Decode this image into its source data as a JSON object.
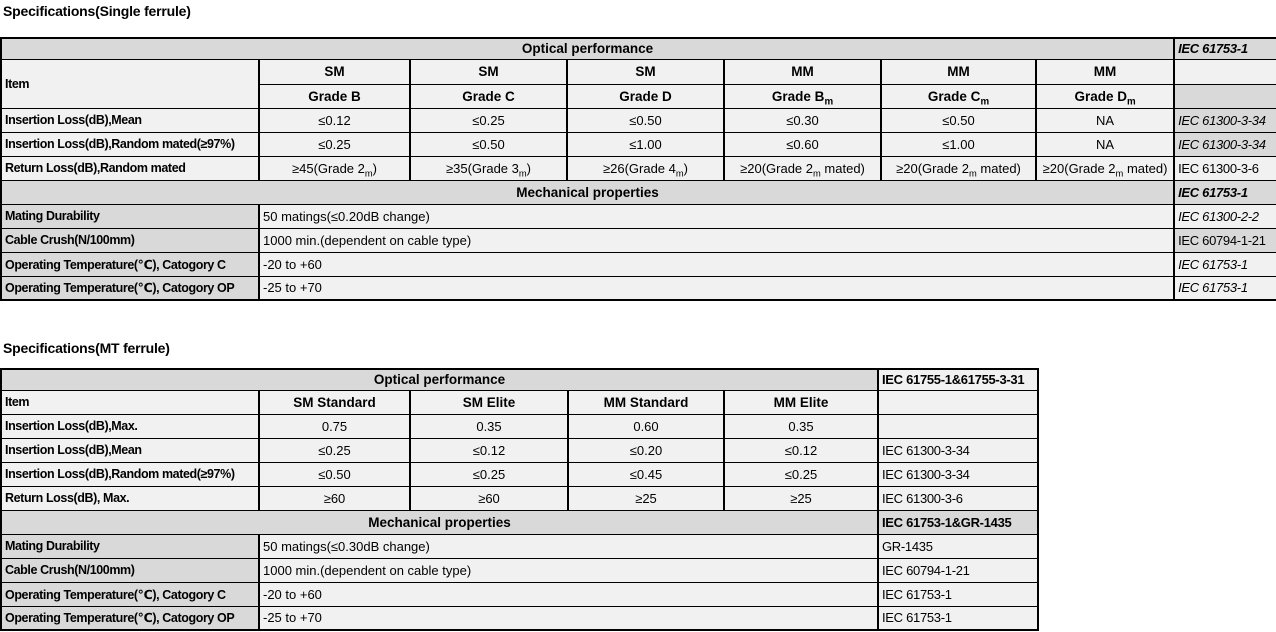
{
  "colors": {
    "page_bg": "#ffffff",
    "header_bg": "#d9d9d9",
    "cell_bg": "#f1f1f1",
    "border": "#000000",
    "text": "#000000"
  },
  "sections": [
    {
      "title": "Specifications(Single ferrule)",
      "optical": {
        "header": "Optical performance",
        "ref": {
          "text": "IEC 61753-1",
          "bold": true,
          "italic": true,
          "gray": true
        },
        "item_label": "Item",
        "col_groups": [
          "SM",
          "SM",
          "SM",
          "MM",
          "MM",
          "MM"
        ],
        "grades": [
          "Grade B",
          "Grade C",
          "Grade D",
          "Grade B{m}",
          "Grade C{m}",
          "Grade D{m}"
        ],
        "rows": [
          {
            "label": "Insertion Loss(dB),Mean",
            "values": [
              "≤0.12",
              "≤0.25",
              "≤0.50",
              "≤0.30",
              "≤0.50",
              "NA"
            ],
            "ref": {
              "text": "IEC 61300-3-34",
              "italic": true,
              "gray": true
            }
          },
          {
            "label": "Insertion Loss(dB),Random mated(≥97%)",
            "values": [
              "≤0.25",
              "≤0.50",
              "≤1.00",
              "≤0.60",
              "≤1.00",
              "NA"
            ],
            "ref": {
              "text": "IEC 61300-3-34",
              "italic": true,
              "gray": true
            }
          },
          {
            "label": "Return Loss(dB),Random mated",
            "values": [
              "≥45(Grade 2{m})",
              "≥35(Grade 3{m})",
              "≥26(Grade 4{m})",
              "≥20(Grade 2{m} mated)",
              "≥20(Grade 2{m} mated)",
              "≥20(Grade 2{m} mated)"
            ],
            "ref": {
              "text": "IEC 61300-3-6"
            }
          }
        ]
      },
      "mechanical": {
        "header": "Mechanical properties",
        "ref": {
          "text": "IEC 61753-1",
          "bold": true,
          "italic": true,
          "gray": true
        },
        "rows": [
          {
            "label": "Mating Durability",
            "value": "50 matings(≤0.20dB change)",
            "ref": {
              "text": "IEC 61300-2-2",
              "italic": true
            }
          },
          {
            "label": "Cable Crush(N/100mm)",
            "value": "1000 min.(dependent on cable type)",
            "ref": {
              "text": "IEC 60794-1-21",
              "gray": true
            }
          },
          {
            "label": "Operating Temperature(℃), Catogory C",
            "value": "-20 to +60",
            "ref": {
              "text": "IEC 61753-1",
              "italic": true
            }
          },
          {
            "label": "Operating Temperature(℃), Catogory OP",
            "value": "-25 to +70",
            "ref": {
              "text": "IEC 61753-1",
              "italic": true
            }
          }
        ]
      }
    },
    {
      "title": "Specifications(MT ferrule)",
      "optical": {
        "header": "Optical performance",
        "ref": {
          "text": "IEC 61755-1&61755-3-31",
          "bold": true
        },
        "item_label": "Item",
        "col_headers": [
          "SM Standard",
          "SM Elite",
          "MM Standard",
          "MM Elite"
        ],
        "rows": [
          {
            "label": "Insertion Loss(dB),Max.",
            "values": [
              "0.75",
              "0.35",
              "0.60",
              "0.35"
            ],
            "ref": {
              "text": ""
            }
          },
          {
            "label": "Insertion Loss(dB),Mean",
            "values": [
              "≤0.25",
              "≤0.12",
              "≤0.20",
              "≤0.12"
            ],
            "ref": {
              "text": "IEC 61300-3-34"
            }
          },
          {
            "label": "Insertion Loss(dB),Random mated(≥97%)",
            "values": [
              "≤0.50",
              "≤0.25",
              "≤0.45",
              "≤0.25"
            ],
            "ref": {
              "text": "IEC 61300-3-34"
            }
          },
          {
            "label": "Return Loss(dB), Max.",
            "values": [
              "≥60",
              "≥60",
              "≥25",
              "≥25"
            ],
            "ref": {
              "text": "IEC 61300-3-6"
            }
          }
        ]
      },
      "mechanical": {
        "header": "Mechanical properties",
        "ref": {
          "text": "IEC 61753-1&GR-1435",
          "bold": true,
          "gray": true
        },
        "rows": [
          {
            "label": "Mating Durability",
            "value": "50 matings(≤0.30dB change)",
            "ref": {
              "text": "GR-1435"
            }
          },
          {
            "label": "Cable Crush(N/100mm)",
            "value": "1000 min.(dependent on cable type)",
            "ref": {
              "text": "IEC 60794-1-21"
            }
          },
          {
            "label": "Operating Temperature(℃), Catogory C",
            "value": "-20 to +60",
            "ref": {
              "text": "IEC 61753-1"
            }
          },
          {
            "label": "Operating Temperature(℃), Catogory OP",
            "value": "-25 to +70",
            "ref": {
              "text": "IEC 61753-1"
            }
          }
        ]
      }
    }
  ]
}
